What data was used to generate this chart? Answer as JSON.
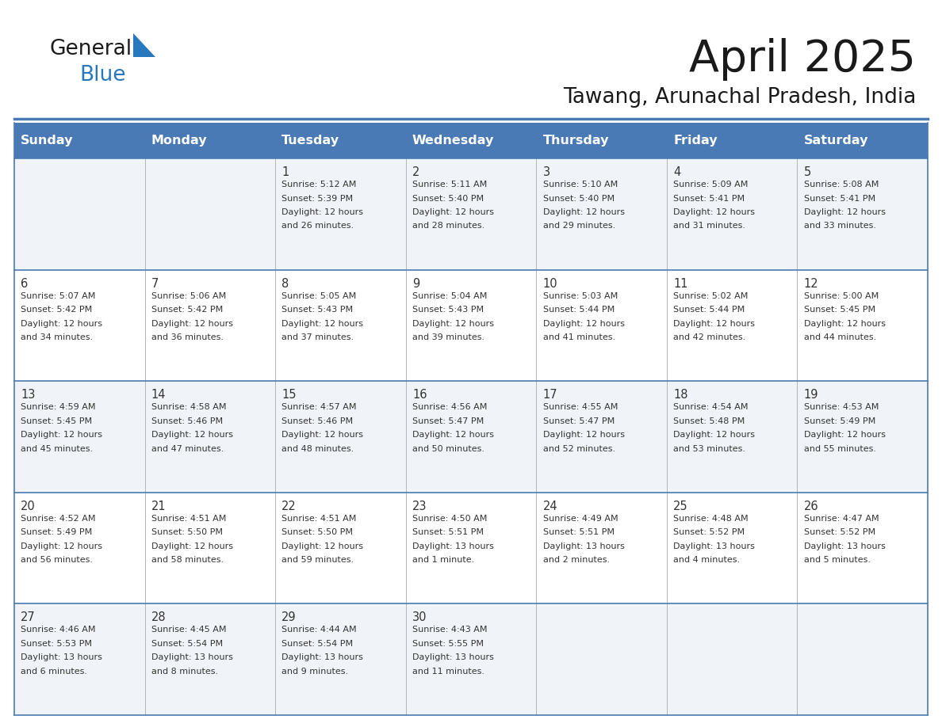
{
  "title": "April 2025",
  "subtitle": "Tawang, Arunachal Pradesh, India",
  "header_bg": "#4a7ab5",
  "header_text": "#ffffff",
  "days_of_week": [
    "Sunday",
    "Monday",
    "Tuesday",
    "Wednesday",
    "Thursday",
    "Friday",
    "Saturday"
  ],
  "row_bg_even": "#f0f4f8",
  "row_bg_odd": "#ffffff",
  "grid_line_color": "#4a7ab5",
  "text_color": "#333333",
  "logo_black": "#1a1a1a",
  "logo_blue": "#2878be",
  "title_color": "#1a1a1a",
  "subtitle_color": "#1a1a1a",
  "calendar": [
    [
      {
        "day": "",
        "sunrise": "",
        "sunset": "",
        "daylight": ""
      },
      {
        "day": "",
        "sunrise": "",
        "sunset": "",
        "daylight": ""
      },
      {
        "day": "1",
        "sunrise": "5:12 AM",
        "sunset": "5:39 PM",
        "daylight": "12 hours and 26 minutes."
      },
      {
        "day": "2",
        "sunrise": "5:11 AM",
        "sunset": "5:40 PM",
        "daylight": "12 hours and 28 minutes."
      },
      {
        "day": "3",
        "sunrise": "5:10 AM",
        "sunset": "5:40 PM",
        "daylight": "12 hours and 29 minutes."
      },
      {
        "day": "4",
        "sunrise": "5:09 AM",
        "sunset": "5:41 PM",
        "daylight": "12 hours and 31 minutes."
      },
      {
        "day": "5",
        "sunrise": "5:08 AM",
        "sunset": "5:41 PM",
        "daylight": "12 hours and 33 minutes."
      }
    ],
    [
      {
        "day": "6",
        "sunrise": "5:07 AM",
        "sunset": "5:42 PM",
        "daylight": "12 hours and 34 minutes."
      },
      {
        "day": "7",
        "sunrise": "5:06 AM",
        "sunset": "5:42 PM",
        "daylight": "12 hours and 36 minutes."
      },
      {
        "day": "8",
        "sunrise": "5:05 AM",
        "sunset": "5:43 PM",
        "daylight": "12 hours and 37 minutes."
      },
      {
        "day": "9",
        "sunrise": "5:04 AM",
        "sunset": "5:43 PM",
        "daylight": "12 hours and 39 minutes."
      },
      {
        "day": "10",
        "sunrise": "5:03 AM",
        "sunset": "5:44 PM",
        "daylight": "12 hours and 41 minutes."
      },
      {
        "day": "11",
        "sunrise": "5:02 AM",
        "sunset": "5:44 PM",
        "daylight": "12 hours and 42 minutes."
      },
      {
        "day": "12",
        "sunrise": "5:00 AM",
        "sunset": "5:45 PM",
        "daylight": "12 hours and 44 minutes."
      }
    ],
    [
      {
        "day": "13",
        "sunrise": "4:59 AM",
        "sunset": "5:45 PM",
        "daylight": "12 hours and 45 minutes."
      },
      {
        "day": "14",
        "sunrise": "4:58 AM",
        "sunset": "5:46 PM",
        "daylight": "12 hours and 47 minutes."
      },
      {
        "day": "15",
        "sunrise": "4:57 AM",
        "sunset": "5:46 PM",
        "daylight": "12 hours and 48 minutes."
      },
      {
        "day": "16",
        "sunrise": "4:56 AM",
        "sunset": "5:47 PM",
        "daylight": "12 hours and 50 minutes."
      },
      {
        "day": "17",
        "sunrise": "4:55 AM",
        "sunset": "5:47 PM",
        "daylight": "12 hours and 52 minutes."
      },
      {
        "day": "18",
        "sunrise": "4:54 AM",
        "sunset": "5:48 PM",
        "daylight": "12 hours and 53 minutes."
      },
      {
        "day": "19",
        "sunrise": "4:53 AM",
        "sunset": "5:49 PM",
        "daylight": "12 hours and 55 minutes."
      }
    ],
    [
      {
        "day": "20",
        "sunrise": "4:52 AM",
        "sunset": "5:49 PM",
        "daylight": "12 hours and 56 minutes."
      },
      {
        "day": "21",
        "sunrise": "4:51 AM",
        "sunset": "5:50 PM",
        "daylight": "12 hours and 58 minutes."
      },
      {
        "day": "22",
        "sunrise": "4:51 AM",
        "sunset": "5:50 PM",
        "daylight": "12 hours and 59 minutes."
      },
      {
        "day": "23",
        "sunrise": "4:50 AM",
        "sunset": "5:51 PM",
        "daylight": "13 hours and 1 minute."
      },
      {
        "day": "24",
        "sunrise": "4:49 AM",
        "sunset": "5:51 PM",
        "daylight": "13 hours and 2 minutes."
      },
      {
        "day": "25",
        "sunrise": "4:48 AM",
        "sunset": "5:52 PM",
        "daylight": "13 hours and 4 minutes."
      },
      {
        "day": "26",
        "sunrise": "4:47 AM",
        "sunset": "5:52 PM",
        "daylight": "13 hours and 5 minutes."
      }
    ],
    [
      {
        "day": "27",
        "sunrise": "4:46 AM",
        "sunset": "5:53 PM",
        "daylight": "13 hours and 6 minutes."
      },
      {
        "day": "28",
        "sunrise": "4:45 AM",
        "sunset": "5:54 PM",
        "daylight": "13 hours and 8 minutes."
      },
      {
        "day": "29",
        "sunrise": "4:44 AM",
        "sunset": "5:54 PM",
        "daylight": "13 hours and 9 minutes."
      },
      {
        "day": "30",
        "sunrise": "4:43 AM",
        "sunset": "5:55 PM",
        "daylight": "13 hours and 11 minutes."
      },
      {
        "day": "",
        "sunrise": "",
        "sunset": "",
        "daylight": ""
      },
      {
        "day": "",
        "sunrise": "",
        "sunset": "",
        "daylight": ""
      },
      {
        "day": "",
        "sunrise": "",
        "sunset": "",
        "daylight": ""
      }
    ]
  ]
}
